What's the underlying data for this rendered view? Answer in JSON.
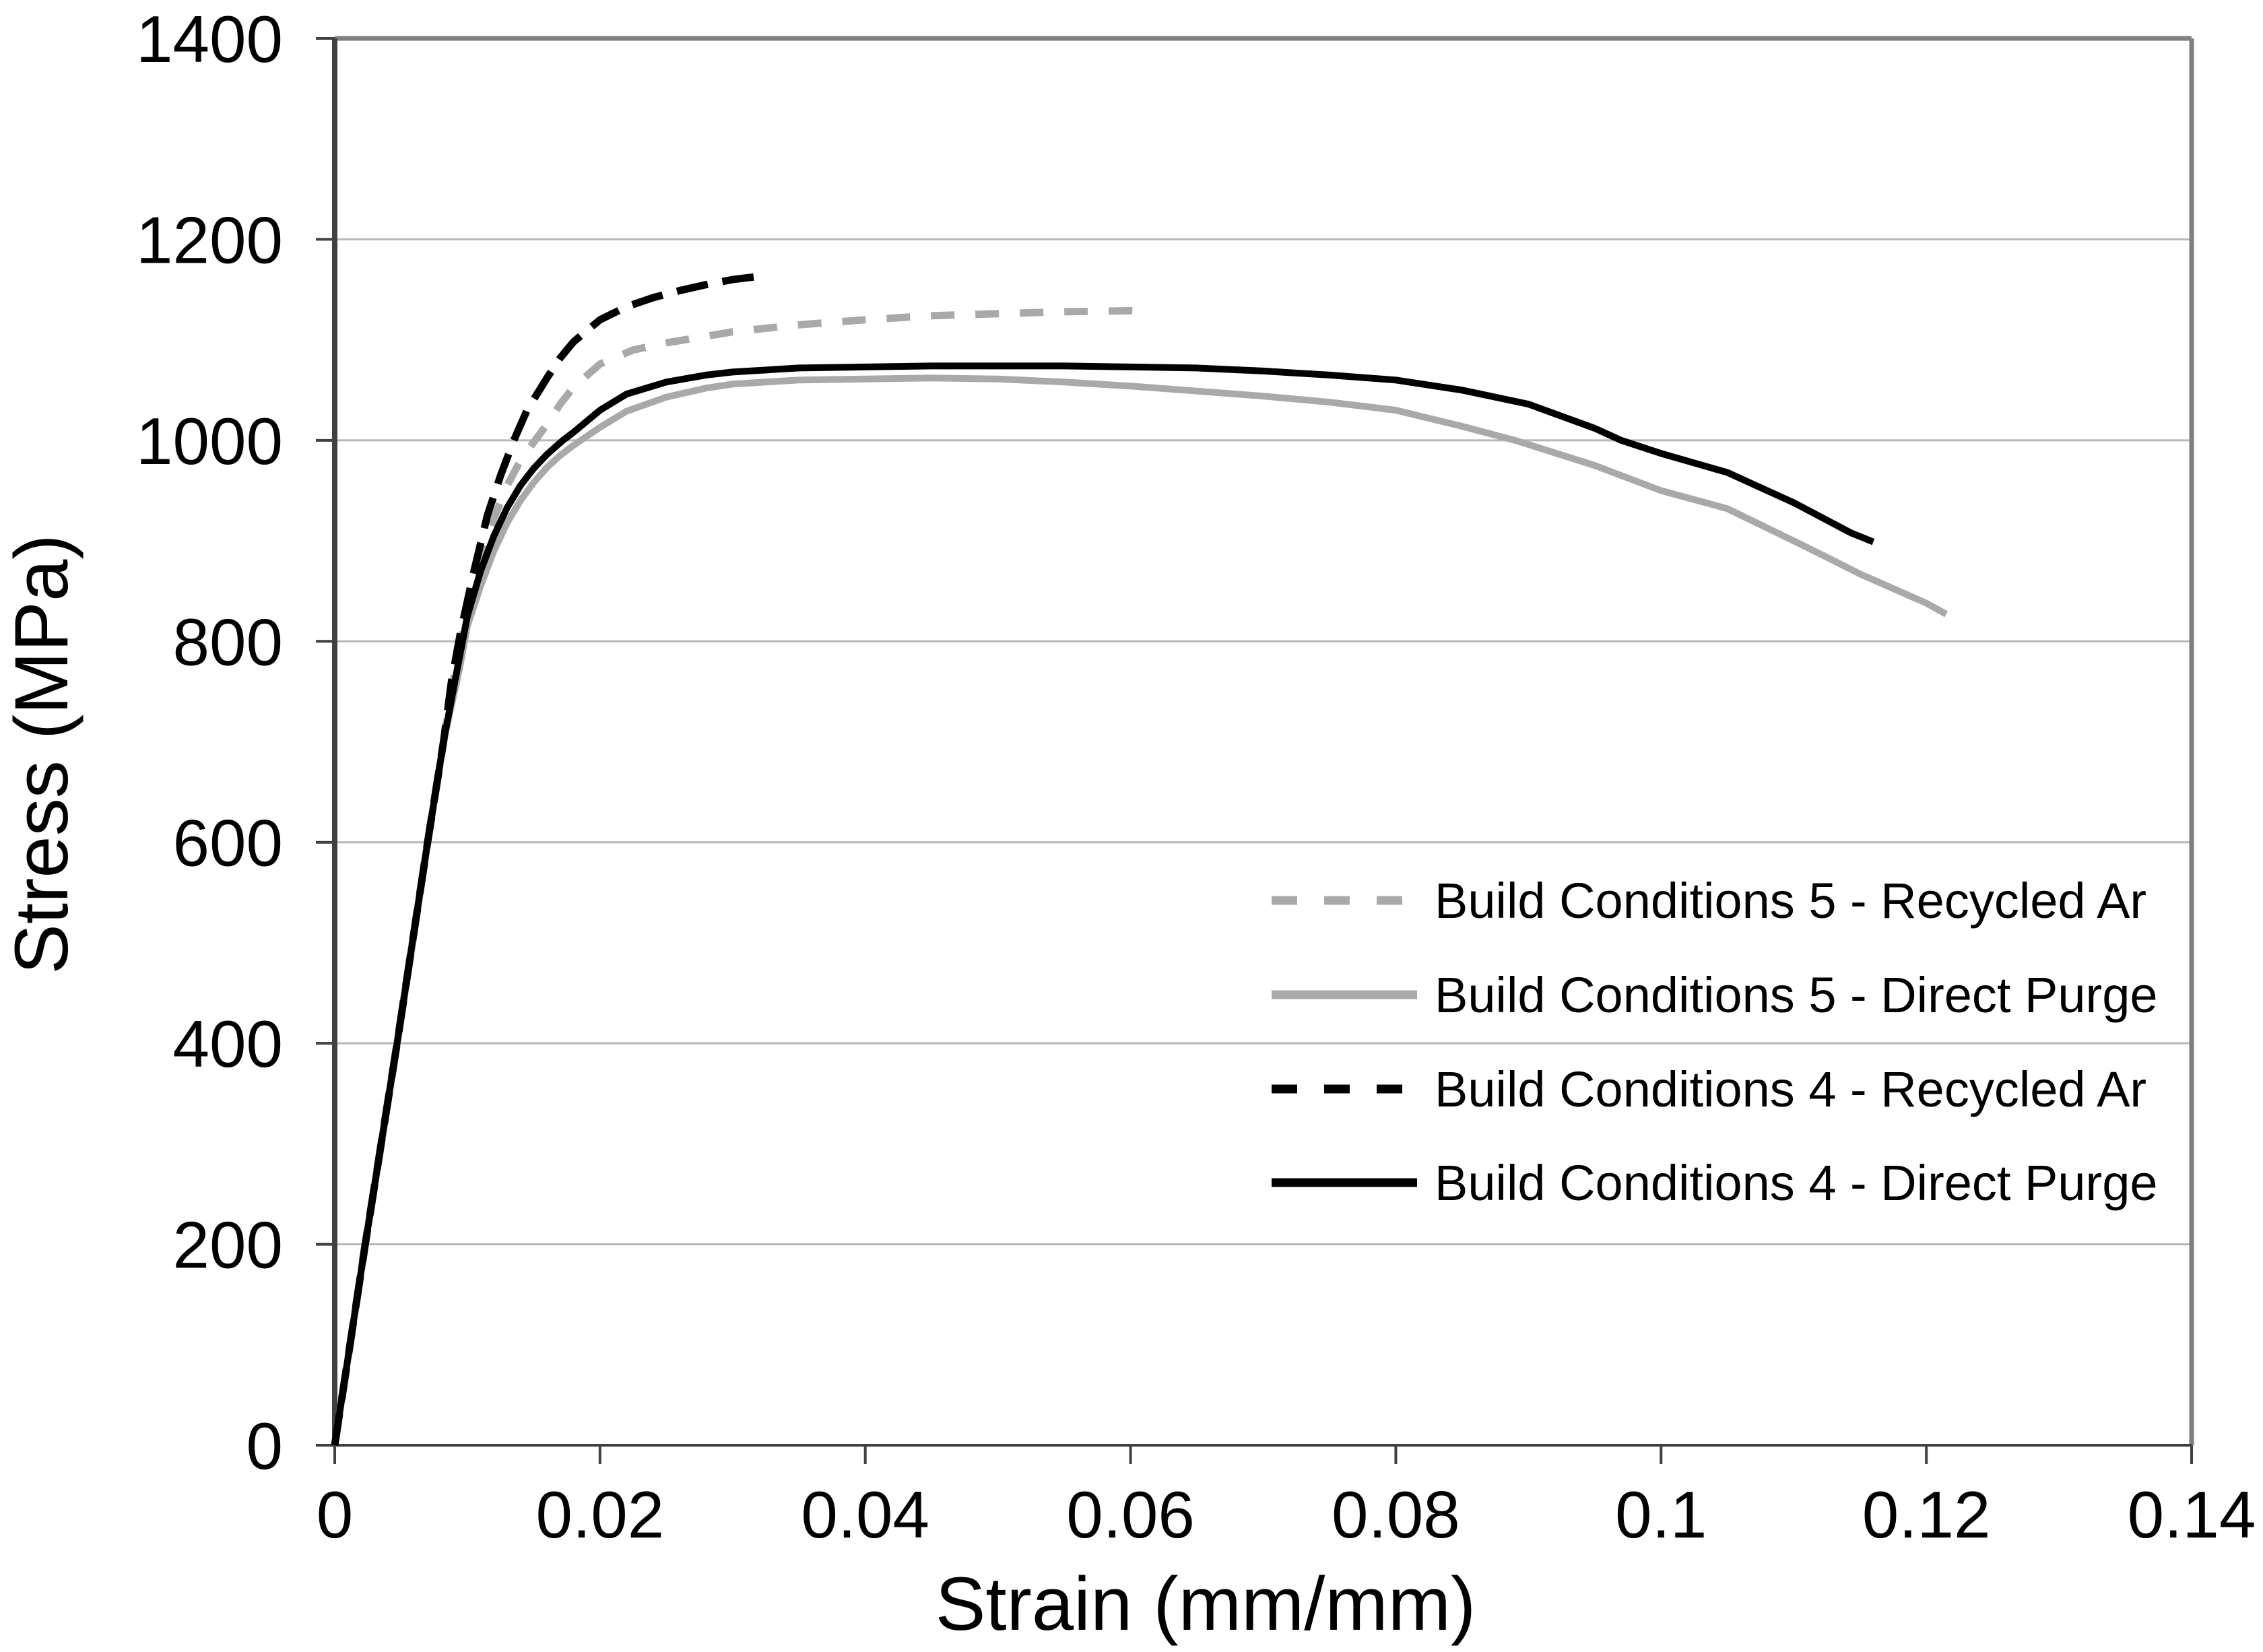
{
  "chart_data": {
    "type": "line",
    "title": "",
    "xlabel": "Strain (mm/mm)",
    "ylabel": "Stress (MPa)",
    "xlim": [
      0,
      0.14
    ],
    "ylim": [
      0,
      1400
    ],
    "xticks": [
      0,
      0.02,
      0.04,
      0.06,
      0.08,
      0.1,
      0.12,
      0.14
    ],
    "xtick_labels": [
      "0",
      "0.02",
      "0.04",
      "0.06",
      "0.08",
      "0.1",
      "0.12",
      "0.14"
    ],
    "yticks": [
      0,
      200,
      400,
      600,
      800,
      1000,
      1200,
      1400
    ],
    "ytick_labels": [
      "0",
      "200",
      "400",
      "600",
      "800",
      "1000",
      "1200",
      "1400"
    ],
    "grid": "horizontal",
    "legend_position": "inside-right",
    "colors": {
      "black_series": "#000000",
      "gray_series": "#a9a9a9",
      "gridline": "#b8b8b8",
      "frame": "#808080",
      "axis": "#404040",
      "text": "#000000",
      "background": "#ffffff"
    },
    "series": [
      {
        "name": "Build Conditions 5 - Recycled Ar",
        "color_key": "gray_series",
        "style": "dashed",
        "points": [
          [
            0,
            0
          ],
          [
            0.0023,
            200
          ],
          [
            0.0047,
            400
          ],
          [
            0.007,
            600
          ],
          [
            0.0082,
            700
          ],
          [
            0.009,
            765
          ],
          [
            0.01,
            830
          ],
          [
            0.011,
            880
          ],
          [
            0.012,
            922
          ],
          [
            0.013,
            955
          ],
          [
            0.014,
            980
          ],
          [
            0.015,
            998
          ],
          [
            0.016,
            1016
          ],
          [
            0.017,
            1036
          ],
          [
            0.018,
            1053
          ],
          [
            0.02,
            1076
          ],
          [
            0.0225,
            1090
          ],
          [
            0.025,
            1097
          ],
          [
            0.03,
            1108
          ],
          [
            0.035,
            1115
          ],
          [
            0.04,
            1120
          ],
          [
            0.045,
            1124
          ],
          [
            0.05,
            1126
          ],
          [
            0.055,
            1128
          ],
          [
            0.06,
            1129
          ],
          [
            0.0615,
            1128
          ]
        ]
      },
      {
        "name": "Build Conditions 5 - Direct Purge",
        "color_key": "gray_series",
        "style": "solid",
        "points": [
          [
            0,
            0
          ],
          [
            0.0023,
            200
          ],
          [
            0.0047,
            400
          ],
          [
            0.007,
            600
          ],
          [
            0.0082,
            700
          ],
          [
            0.0094,
            772
          ],
          [
            0.01,
            815
          ],
          [
            0.011,
            855
          ],
          [
            0.012,
            890
          ],
          [
            0.013,
            918
          ],
          [
            0.014,
            940
          ],
          [
            0.015,
            958
          ],
          [
            0.016,
            973
          ],
          [
            0.017,
            985
          ],
          [
            0.018,
            995
          ],
          [
            0.019,
            1004
          ],
          [
            0.02,
            1013
          ],
          [
            0.022,
            1029
          ],
          [
            0.025,
            1043
          ],
          [
            0.028,
            1052
          ],
          [
            0.03,
            1056
          ],
          [
            0.035,
            1060
          ],
          [
            0.04,
            1061
          ],
          [
            0.045,
            1062
          ],
          [
            0.05,
            1061
          ],
          [
            0.055,
            1058
          ],
          [
            0.06,
            1054
          ],
          [
            0.065,
            1049
          ],
          [
            0.07,
            1044
          ],
          [
            0.075,
            1038
          ],
          [
            0.08,
            1030
          ],
          [
            0.085,
            1014
          ],
          [
            0.089,
            1000
          ],
          [
            0.095,
            975
          ],
          [
            0.1,
            950
          ],
          [
            0.105,
            932
          ],
          [
            0.11,
            900
          ],
          [
            0.1126,
            883
          ],
          [
            0.115,
            867
          ],
          [
            0.12,
            838
          ],
          [
            0.1215,
            827
          ]
        ]
      },
      {
        "name": "Build Conditions 4 - Recycled Ar",
        "color_key": "black_series",
        "style": "dashed",
        "points": [
          [
            0,
            0
          ],
          [
            0.0023,
            200
          ],
          [
            0.0047,
            400
          ],
          [
            0.007,
            600
          ],
          [
            0.0082,
            700
          ],
          [
            0.0088,
            760
          ],
          [
            0.0095,
            810
          ],
          [
            0.0105,
            870
          ],
          [
            0.0115,
            925
          ],
          [
            0.0125,
            965
          ],
          [
            0.0135,
            1000
          ],
          [
            0.0145,
            1030
          ],
          [
            0.016,
            1062
          ],
          [
            0.017,
            1082
          ],
          [
            0.018,
            1098
          ],
          [
            0.02,
            1120
          ],
          [
            0.022,
            1133
          ],
          [
            0.024,
            1142
          ],
          [
            0.026,
            1149
          ],
          [
            0.028,
            1155
          ],
          [
            0.03,
            1160
          ],
          [
            0.0325,
            1164
          ]
        ]
      },
      {
        "name": "Build Conditions 4 - Direct Purge",
        "color_key": "black_series",
        "style": "solid",
        "points": [
          [
            0,
            0
          ],
          [
            0.0023,
            200
          ],
          [
            0.0047,
            400
          ],
          [
            0.007,
            600
          ],
          [
            0.0082,
            700
          ],
          [
            0.0092,
            770
          ],
          [
            0.01,
            825
          ],
          [
            0.011,
            870
          ],
          [
            0.012,
            905
          ],
          [
            0.013,
            933
          ],
          [
            0.014,
            955
          ],
          [
            0.015,
            972
          ],
          [
            0.016,
            986
          ],
          [
            0.0172,
            1000
          ],
          [
            0.018,
            1008
          ],
          [
            0.02,
            1030
          ],
          [
            0.022,
            1046
          ],
          [
            0.025,
            1058
          ],
          [
            0.028,
            1065
          ],
          [
            0.03,
            1068
          ],
          [
            0.035,
            1072
          ],
          [
            0.04,
            1073
          ],
          [
            0.045,
            1074
          ],
          [
            0.05,
            1074
          ],
          [
            0.055,
            1074
          ],
          [
            0.06,
            1073
          ],
          [
            0.065,
            1072
          ],
          [
            0.07,
            1069
          ],
          [
            0.075,
            1065
          ],
          [
            0.08,
            1060
          ],
          [
            0.085,
            1050
          ],
          [
            0.09,
            1036
          ],
          [
            0.095,
            1012
          ],
          [
            0.097,
            1000
          ],
          [
            0.1,
            987
          ],
          [
            0.105,
            968
          ],
          [
            0.11,
            938
          ],
          [
            0.1143,
            908
          ],
          [
            0.116,
            899
          ]
        ]
      }
    ]
  }
}
